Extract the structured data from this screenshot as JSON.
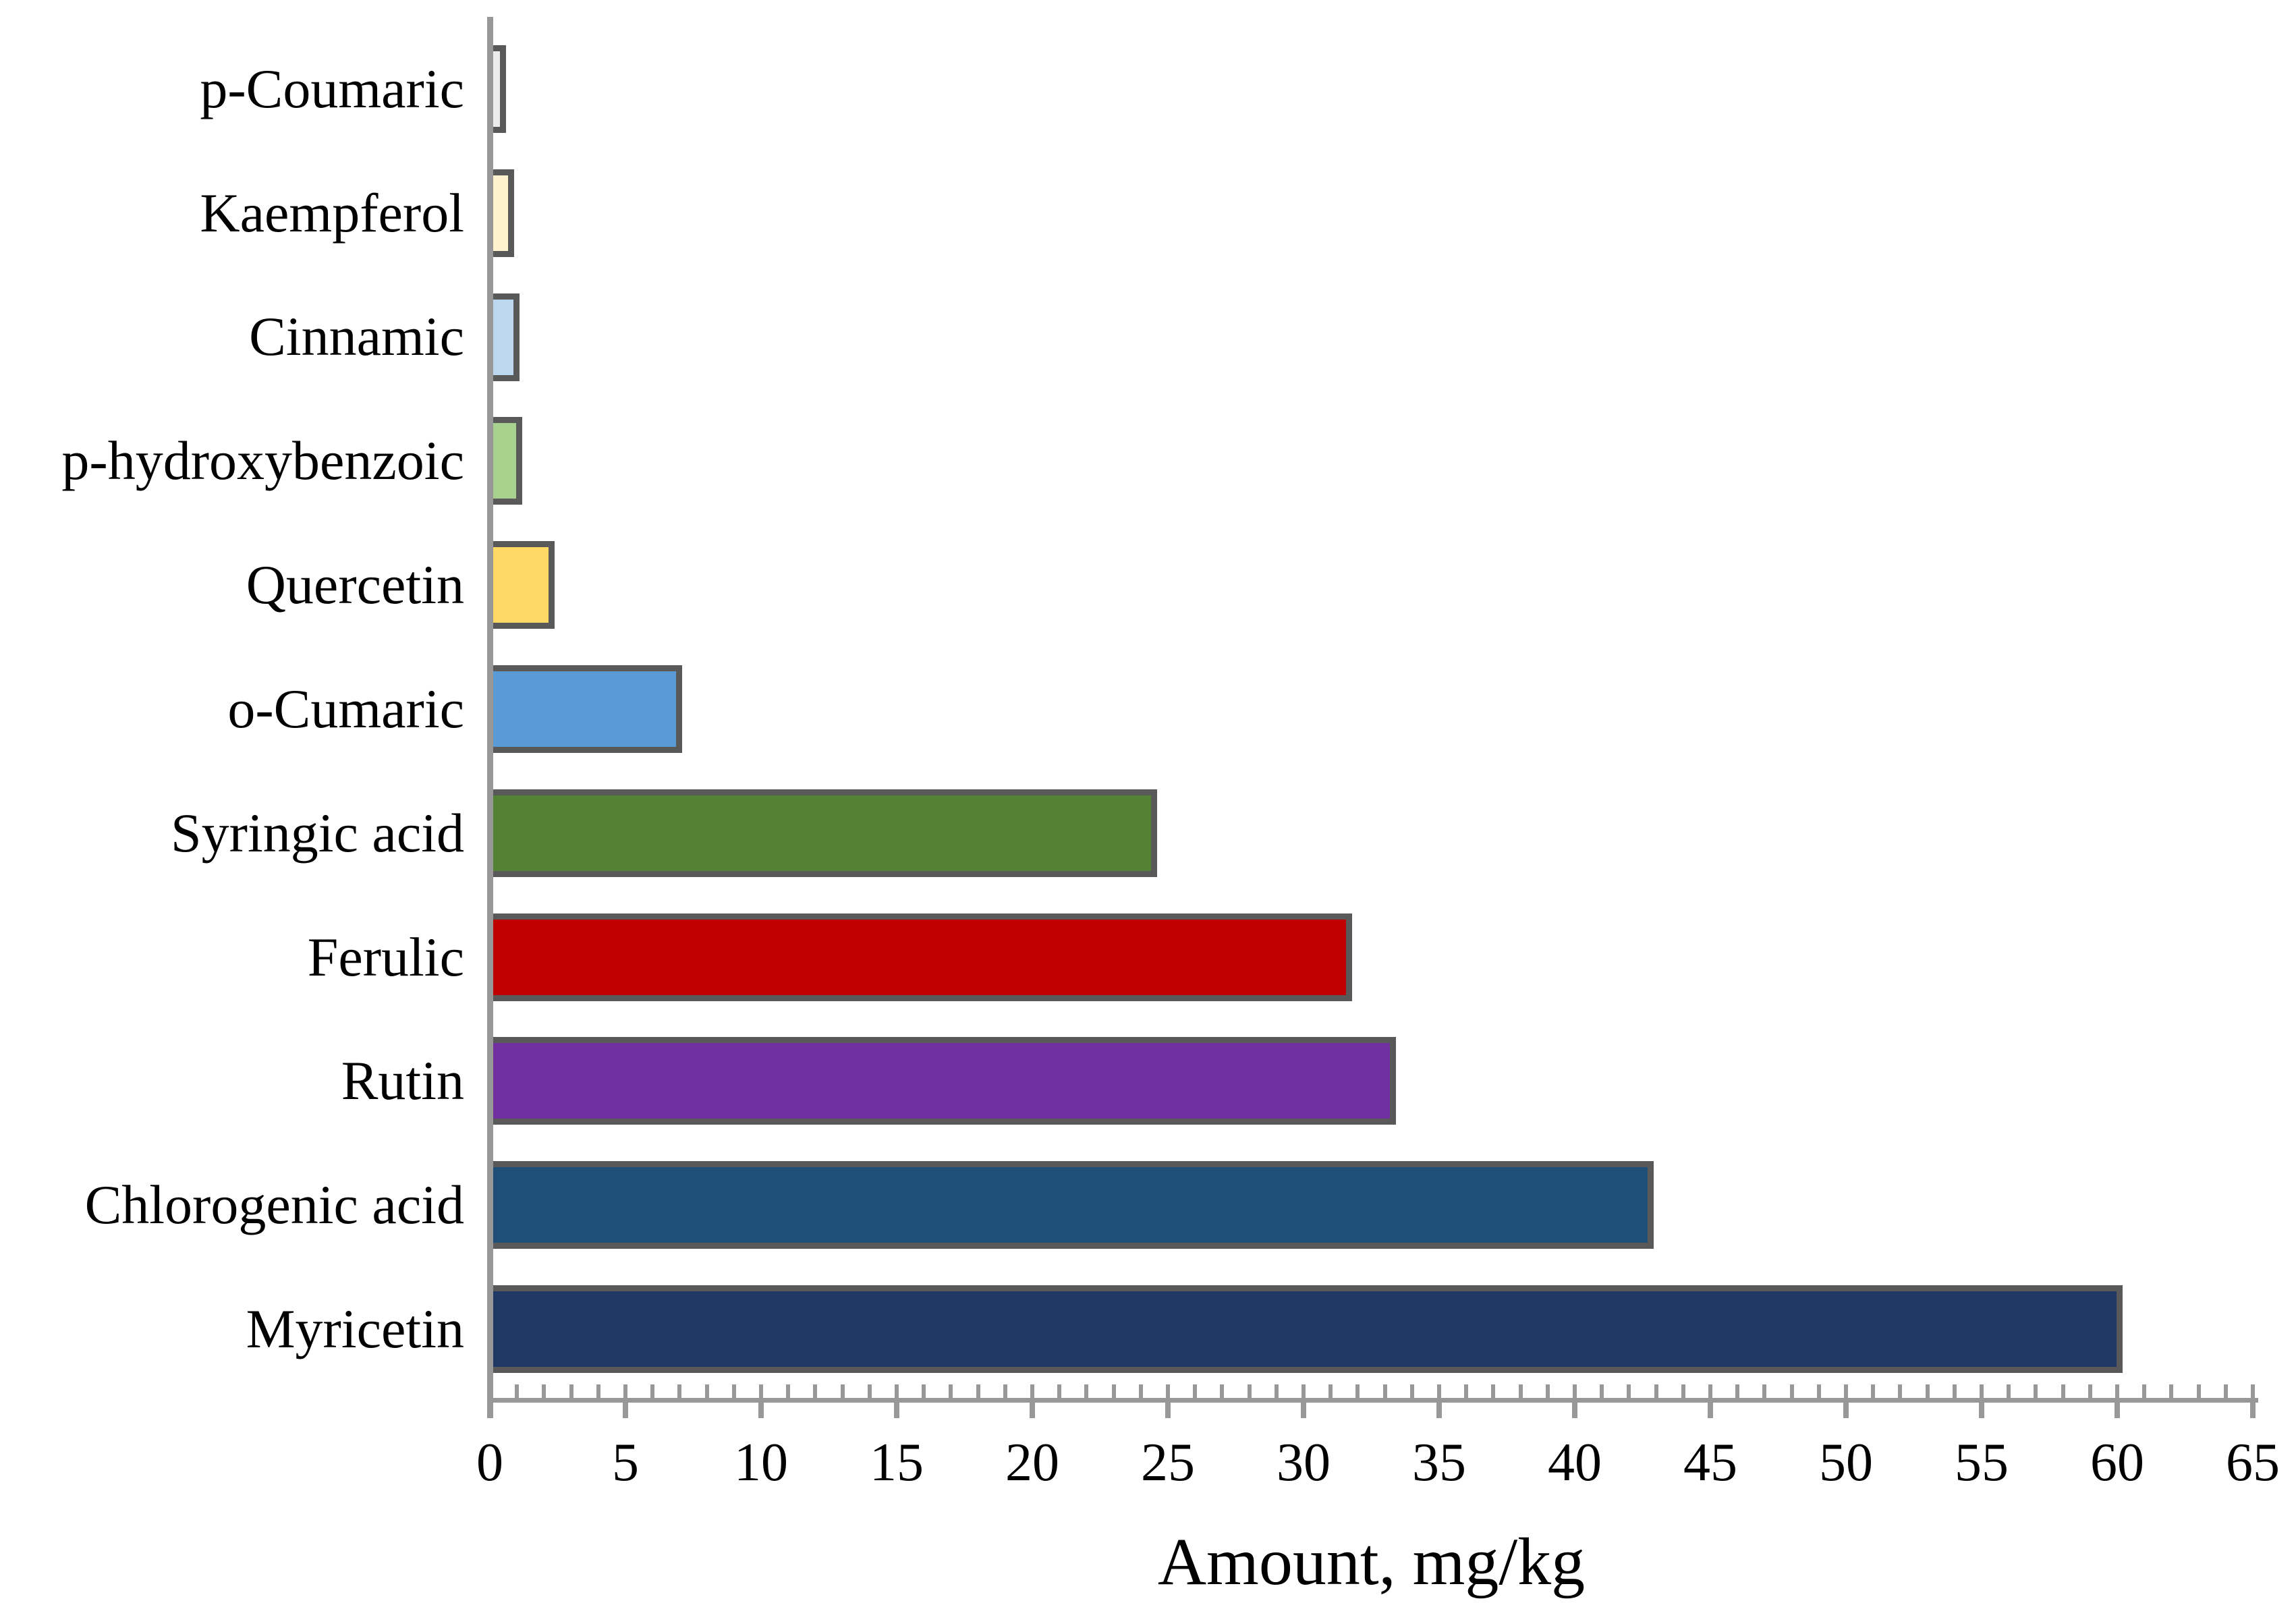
{
  "chart_data": {
    "type": "bar",
    "orientation": "horizontal",
    "title": "",
    "xlabel": "Amount, mg/kg",
    "ylabel": "",
    "categories": [
      "p-Coumaric",
      "Kaempferol",
      "Cinnamic",
      "p-hydroxybenzoic",
      "Quercetin",
      "o-Cumaric",
      "Syringic acid",
      "Ferulic",
      "Rutin",
      "Chlorogenic acid",
      "Myricetin"
    ],
    "values": [
      0.6,
      0.9,
      1.1,
      1.2,
      2.4,
      7.1,
      24.6,
      31.8,
      33.4,
      42.9,
      60.2
    ],
    "bar_colors": [
      "#EBEBEB",
      "#FFF2CC",
      "#BDD7EE",
      "#A9D18E",
      "#FFD966",
      "#5B9BD5",
      "#548235",
      "#C00000",
      "#7030A0",
      "#1F4E79",
      "#203864"
    ],
    "bar_border_color": "#595959",
    "axis_color": "#989898",
    "text_color": "#000000",
    "xlim": [
      0,
      65
    ],
    "x_major_ticks": [
      0,
      5,
      10,
      15,
      20,
      25,
      30,
      35,
      40,
      45,
      50,
      55,
      60,
      65
    ],
    "x_minor_tick_step": 1,
    "grid": "off",
    "legend": "none"
  }
}
